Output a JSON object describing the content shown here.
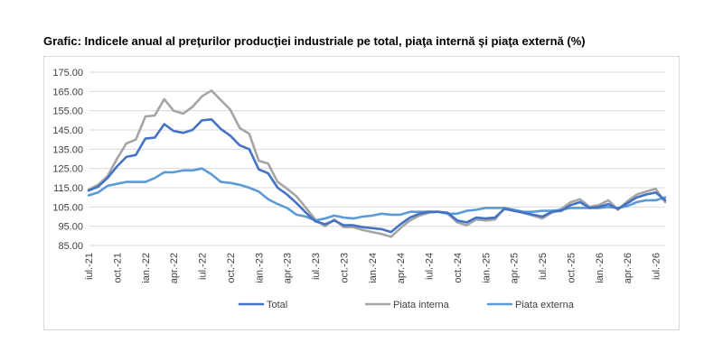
{
  "title": "Grafic: Indicele anual al preţurilor producţiei industriale pe total, piaţa internă şi piaţa externă (%)",
  "chart_data": {
    "type": "line",
    "title": "Grafic: Indicele anual al preţurilor producţiei industriale pe total, piaţa internă şi piaţa externă (%)",
    "xlabel": "",
    "ylabel": "",
    "ylim": [
      85,
      175
    ],
    "yticks": [
      "175.00",
      "165.00",
      "155.00",
      "145.00",
      "135.00",
      "125.00",
      "115.00",
      "105.00",
      "95.00",
      "85.00"
    ],
    "x_tick_labels": [
      "iul.-21",
      "oct.-21",
      "ian.-22",
      "apr.-22",
      "iul.-22",
      "oct.-22",
      "ian.-23",
      "apr.-23",
      "iul.-23",
      "oct.-23",
      "ian.-24",
      "apr.-24",
      "iul.-24",
      "oct.-24",
      "ian.-25",
      "apr.-25",
      "iul.-25",
      "oct.-25",
      "ian.-26",
      "apr.-26",
      "iul.-26"
    ],
    "x_tick_month_index": [
      0,
      3,
      6,
      9,
      12,
      15,
      18,
      21,
      24,
      27,
      30,
      33,
      36,
      39,
      42,
      45,
      48,
      51,
      54,
      57,
      60
    ],
    "grid": true,
    "legend_position": "bottom",
    "series": [
      {
        "name": "Total",
        "color": "#4472c4",
        "values": [
          113.5,
          115.5,
          120,
          126,
          131,
          132,
          140.5,
          141,
          148,
          144.5,
          143.5,
          145,
          150,
          150.5,
          145.5,
          142,
          137,
          135,
          124.5,
          122.5,
          115,
          111.5,
          107,
          102,
          97.5,
          96,
          98,
          95.5,
          95.5,
          94.5,
          94,
          93.5,
          92,
          96,
          99.5,
          101.5,
          102.5,
          102.5,
          102,
          98,
          97,
          99.5,
          99,
          99.5,
          104,
          103,
          102,
          101,
          100,
          102.5,
          103,
          106,
          107.5,
          104.5,
          105,
          106.5,
          104,
          107,
          110,
          111.5,
          112.5,
          108.5
        ]
      },
      {
        "name": "Piata interna",
        "color": "#a5a5a5",
        "values": [
          114,
          116.5,
          121,
          130,
          138,
          140,
          152,
          152.5,
          161,
          155,
          153.5,
          157,
          162.5,
          165.5,
          160.5,
          155.5,
          146,
          143,
          129,
          127.5,
          118,
          114.5,
          110.5,
          104.5,
          98.5,
          95,
          98.5,
          94.5,
          94.5,
          93,
          92,
          91,
          89.5,
          94,
          98,
          100.5,
          102,
          102.5,
          101.5,
          97,
          95.5,
          98.5,
          98,
          98.5,
          104.5,
          103.5,
          102,
          100.5,
          99,
          102,
          104,
          107.5,
          109,
          105,
          106,
          108.5,
          103.5,
          108,
          111.5,
          113,
          114.5,
          107.5
        ]
      },
      {
        "name": "Piata externa",
        "color": "#5b9bd5",
        "values": [
          111,
          112.5,
          116,
          117,
          118,
          118,
          118,
          120,
          123,
          123,
          124,
          124,
          125,
          122,
          118,
          117.5,
          116.5,
          115,
          113,
          109,
          106.5,
          104.5,
          101,
          100,
          98,
          99,
          100.5,
          99.5,
          99,
          100,
          100.5,
          101.5,
          101,
          101,
          102.5,
          102.5,
          102.5,
          102.5,
          101.5,
          101.5,
          103,
          103.5,
          104.5,
          104.5,
          104.5,
          103.5,
          102.5,
          102.5,
          103,
          103,
          103.5,
          104.5,
          104.5,
          104.5,
          104.5,
          105,
          104.5,
          105.5,
          107.5,
          108.5,
          108.5,
          110
        ]
      }
    ]
  }
}
